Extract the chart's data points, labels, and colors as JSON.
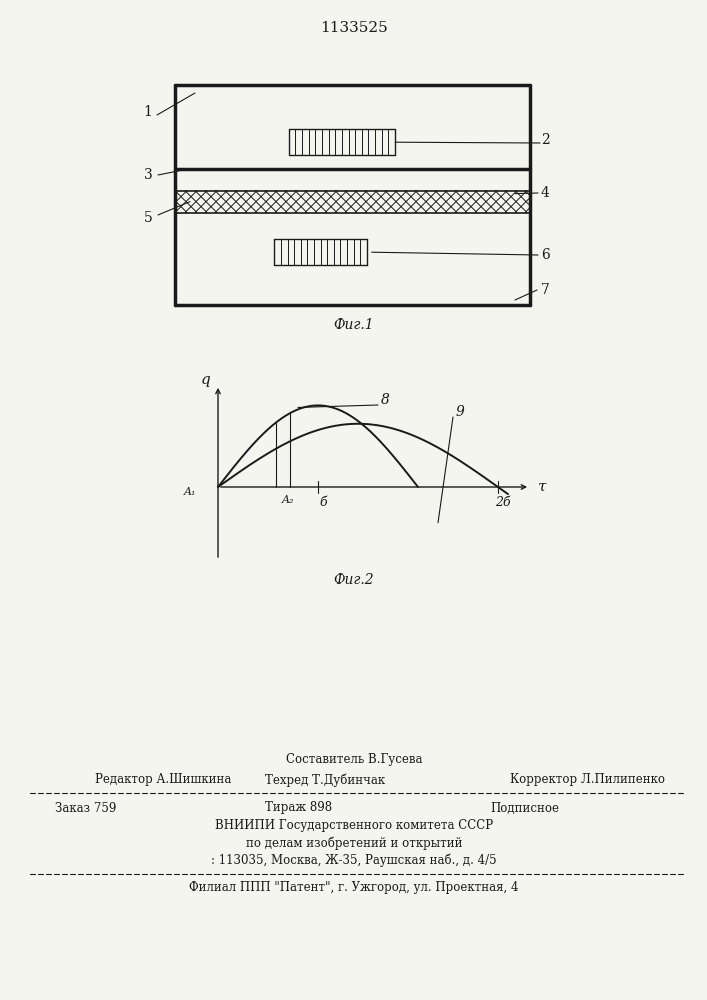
{
  "title_number": "1133525",
  "fig1_label": "Фиг.1",
  "fig2_label": "Фиг.2",
  "background_color": "#f5f5f0",
  "line_color": "#1a1a1a",
  "footer": {
    "line1_center": "Составитель В.Гусева",
    "line2_left": "Редактор А.Шишкина",
    "line2_center": "Техред Т.Дубинчак",
    "line2_right": "Корректор Л.Пилипенко",
    "line3_left": "Заказ 759",
    "line3_center": "Тираж 898",
    "line3_right": "Подписное",
    "line4": "ВНИИПИ Государственного комитета СССР",
    "line5": "по делам изобретений и открытий",
    "line6": ": 113035, Москва, Ж-35, Раушская наб., д. 4/5",
    "line7": "Филиал ППП \"Патент\", г. Ужгород, ул. Проектная, 4"
  }
}
